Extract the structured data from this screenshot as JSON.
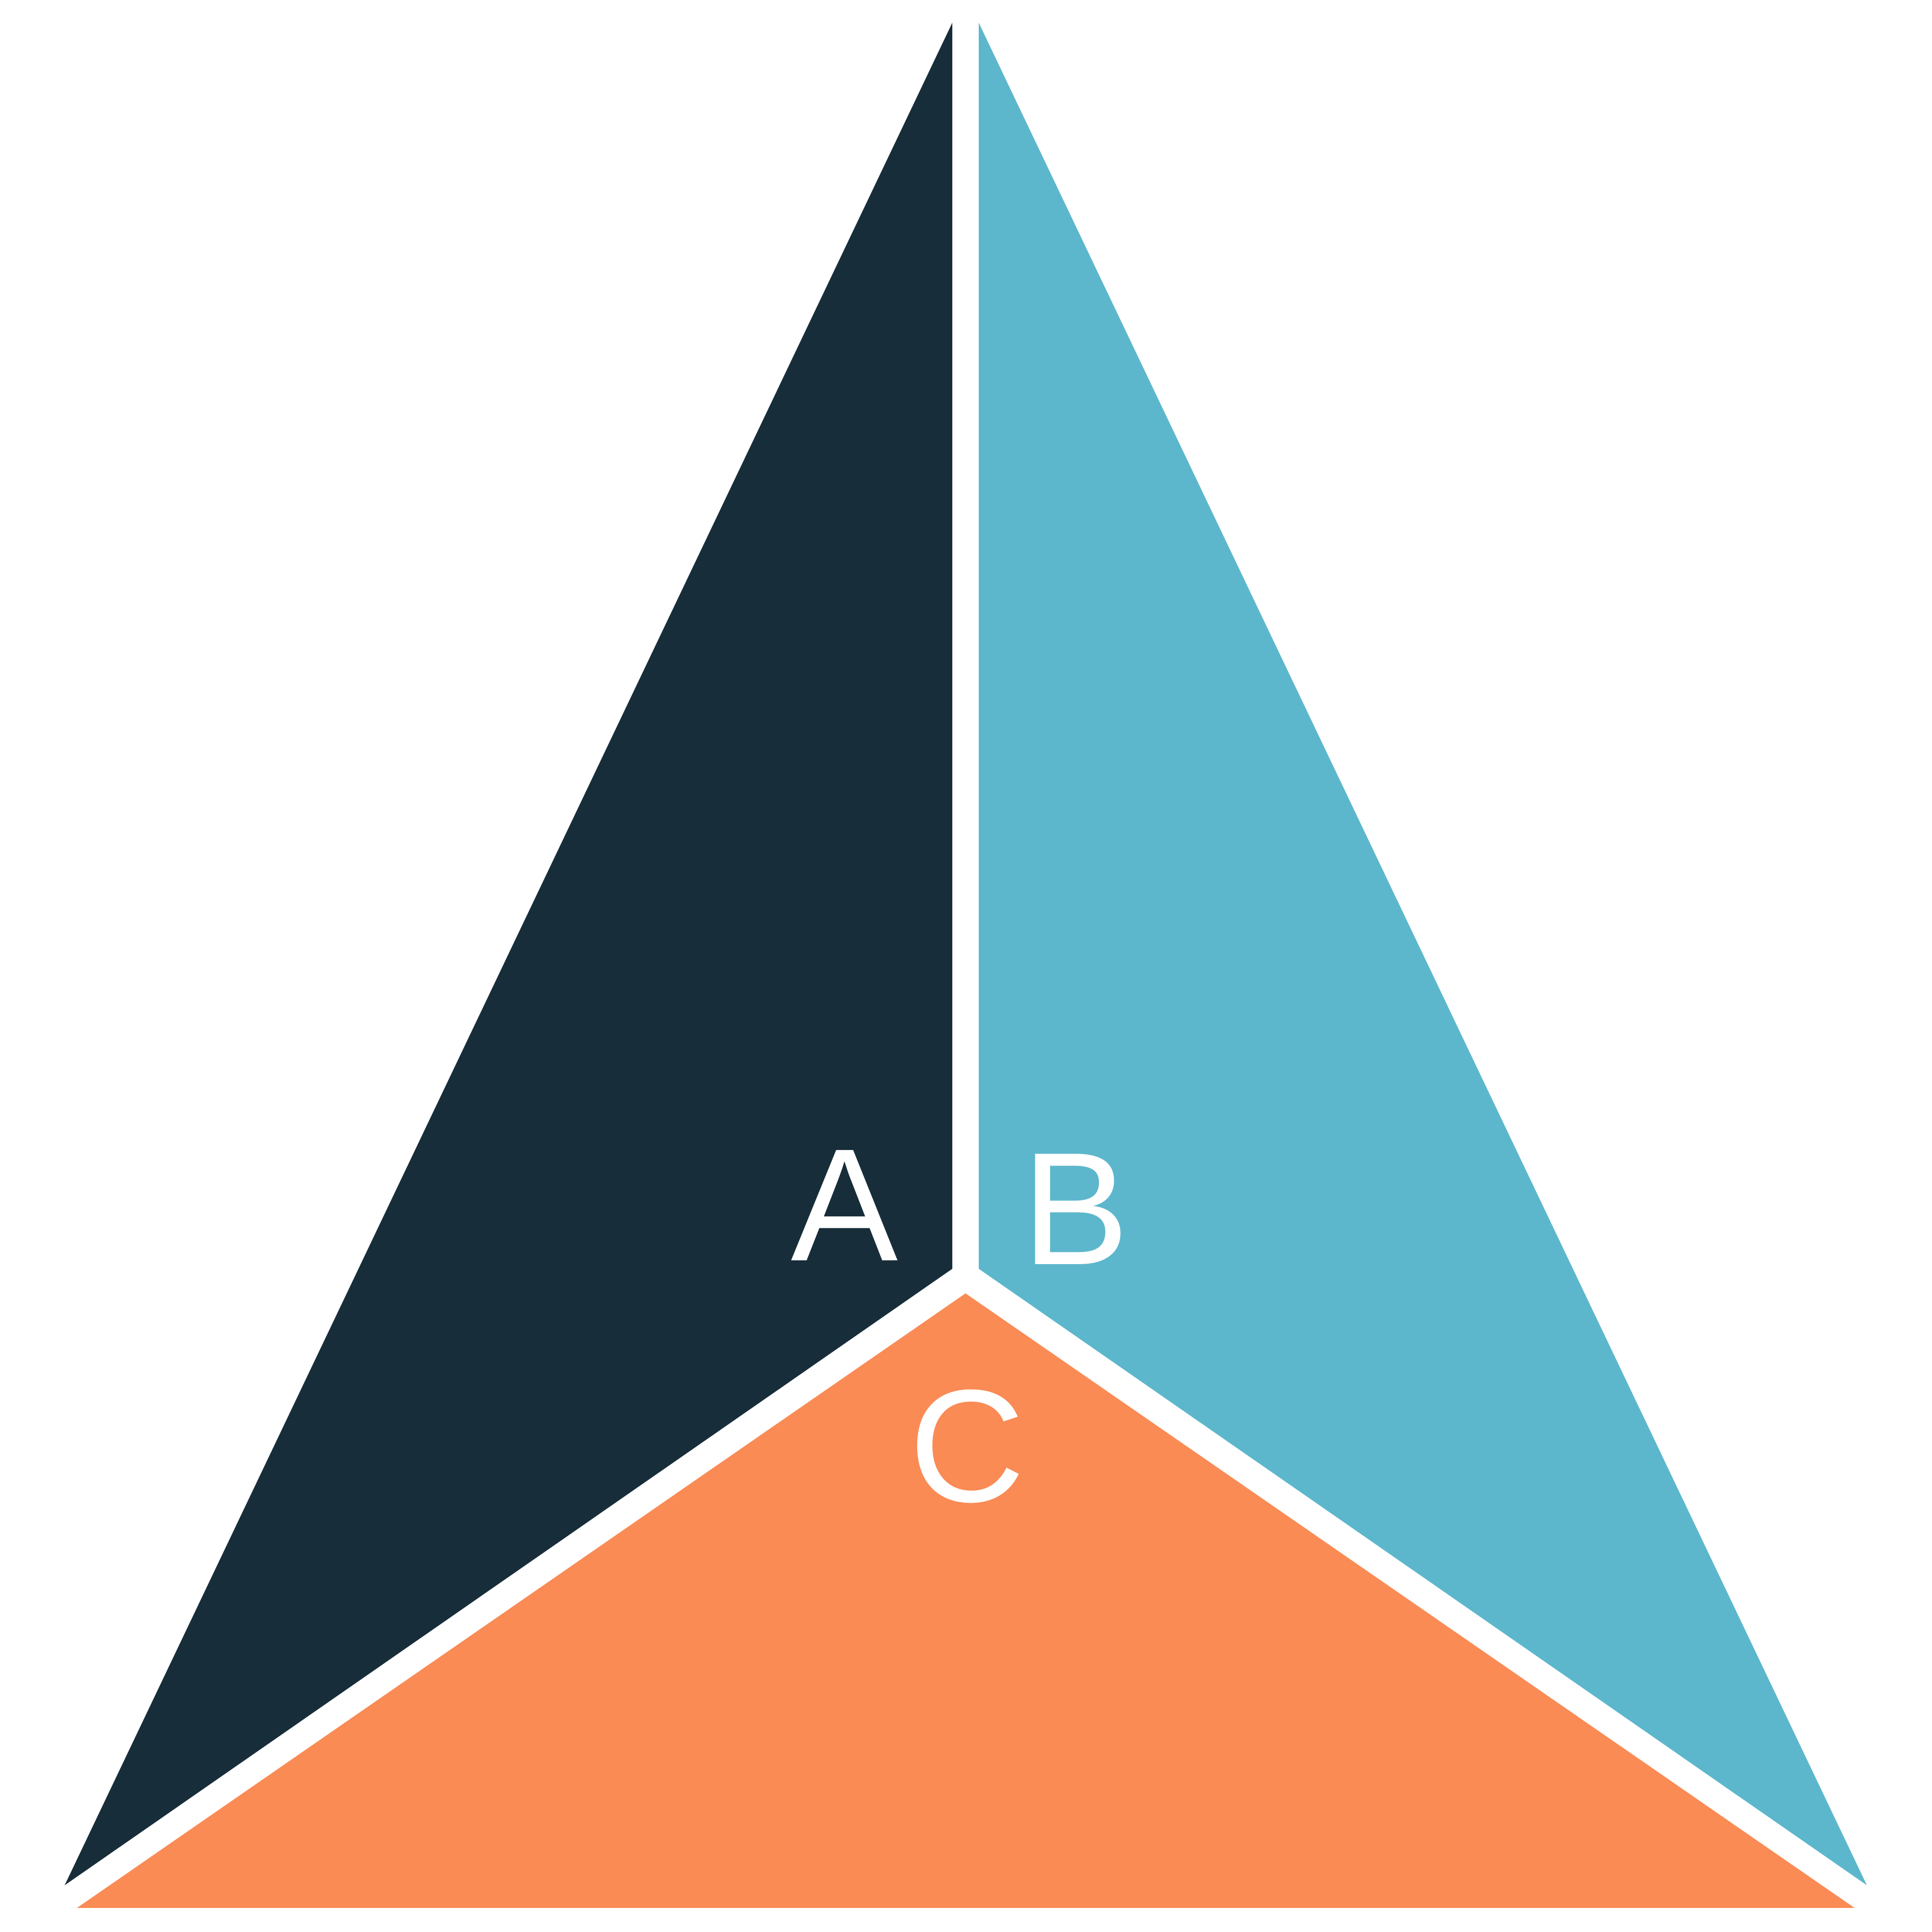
{
  "segments": [
    {
      "id": "a",
      "label": "A",
      "color": "#182d3a"
    },
    {
      "id": "b",
      "label": "B",
      "color": "#5db7cc"
    },
    {
      "id": "c",
      "label": "C",
      "color": "#fa8b55"
    }
  ],
  "label_color": "#ffffff",
  "background": "#ffffff"
}
